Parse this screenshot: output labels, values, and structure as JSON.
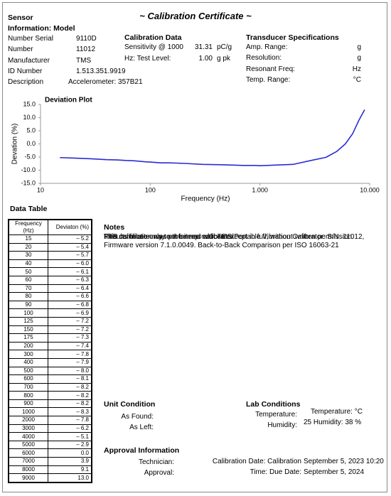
{
  "header": {
    "title": "~ Calibration Certificate ~",
    "section": "Sensor",
    "subtitle": "Information: Model"
  },
  "sensor": {
    "rows": [
      [
        "Number Serial",
        "9110D"
      ],
      [
        "Number",
        "11012"
      ],
      [
        "Manufacturer",
        "TMS"
      ],
      [
        "ID Number",
        "1.513.351.9919"
      ],
      [
        "Description",
        "Accelerometer: 357B21"
      ]
    ]
  },
  "calibration_data": {
    "title": "Calibration Data",
    "rows": [
      [
        "Sensitivity @ 1000",
        "31.31",
        "pC/g"
      ],
      [
        "Hz: Test Level:",
        "1.00",
        "g pk"
      ]
    ]
  },
  "transducer": {
    "title": "Transducer Specifications",
    "rows": [
      [
        "Amp. Range:",
        "g"
      ],
      [
        "Resolution:",
        "g"
      ],
      [
        "Resonant Freq:",
        "Hz"
      ],
      [
        "Temp. Range:",
        "°C"
      ]
    ]
  },
  "chart_data": {
    "type": "line",
    "title": "Deviation Plot",
    "x_label": "Frequency (Hz)",
    "y_label": "Devation (%)",
    "color": "#2b2bd6",
    "x_scale": "log",
    "x": [
      15,
      20,
      30,
      40,
      50,
      60,
      70,
      80,
      90,
      100,
      125,
      150,
      175,
      200,
      300,
      400,
      500,
      600,
      700,
      800,
      900,
      1000,
      2000,
      3000,
      4000,
      5000,
      6000,
      7000,
      8000,
      9000
    ],
    "values": [
      -5.2,
      -5.4,
      -5.7,
      -6.0,
      -6.1,
      -6.3,
      -6.4,
      -6.6,
      -6.8,
      -6.9,
      -7.2,
      -7.2,
      -7.3,
      -7.4,
      -7.8,
      -7.9,
      -8.0,
      -8.1,
      -8.2,
      -8.2,
      -8.2,
      -8.3,
      -7.8,
      -6.2,
      -5.1,
      -2.9,
      0.0,
      3.9,
      9.1,
      13.0
    ],
    "xlim": [
      10,
      10000
    ],
    "xticks": [
      10,
      100,
      {
        "value": 1000,
        "label": "1.000"
      },
      {
        "value": 10000,
        "label": "10.000"
      }
    ],
    "ylim": [
      -15,
      15
    ],
    "yticks": [
      {
        "value": 15,
        "label": "15.0"
      },
      {
        "value": 10,
        "label": "10.0"
      },
      {
        "value": 5,
        "label": "5.0"
      },
      {
        "value": 0,
        "label": "0.0"
      },
      {
        "value": -5,
        "label": "-5.0"
      },
      {
        "value": -10,
        "label": "-10.0"
      },
      {
        "value": -15,
        "label": "-15.0"
      }
    ]
  },
  "data_table": {
    "title": "Data Table",
    "columns": [
      "Frequency (Hz)",
      "Deviaton  (%)"
    ],
    "rows": [
      [
        "15",
        "– 5.2"
      ],
      [
        "20",
        "– 5.4"
      ],
      [
        "30",
        "– 5.7"
      ],
      [
        "40",
        "– 6.0"
      ],
      [
        "50",
        "– 6.1"
      ],
      [
        "60",
        "– 6.3"
      ],
      [
        "70",
        "– 6.4"
      ],
      [
        "80",
        "– 6.6"
      ],
      [
        "90",
        "– 6.8"
      ],
      [
        "100",
        "– 6.9"
      ],
      [
        "125",
        "– 7.2"
      ],
      [
        "150",
        "– 7.2"
      ],
      [
        "175",
        "– 7.3"
      ],
      [
        "200",
        "– 7.4"
      ],
      [
        "300",
        "– 7.8"
      ],
      [
        "400",
        "– 7.9"
      ],
      [
        "500",
        "– 8.0"
      ],
      [
        "600",
        "– 8.1"
      ],
      [
        "700",
        "– 8.2"
      ],
      [
        "800",
        "– 8.2"
      ],
      [
        "900",
        "– 8.2"
      ],
      [
        "1000",
        "– 8.3"
      ],
      [
        "2000",
        "– 7.8"
      ],
      [
        "3000",
        "– 6.2"
      ],
      [
        "4000",
        "– 5.1"
      ],
      [
        "5000",
        "– 2.9"
      ],
      [
        "6000",
        "0.0"
      ],
      [
        "7000",
        "3.9"
      ],
      [
        "8000",
        "9.1"
      ],
      [
        "9000",
        "13.0"
      ]
    ]
  },
  "notes": {
    "title": "Notes",
    "lines": [
      "Results relate only to the items calibrated.",
      "This certificate may not be reproduced except in full, without written permission.",
      "PTB",
      "This calibration was performed with TMS Portable Vibration Calibrator: S/N: 11012, Firmware version 7.1.0.0049. Back-to-Back Comparison per ISO 16063-21"
    ]
  },
  "unit_condition": {
    "title": "Unit Condition",
    "labels": [
      "As Found:",
      "As Left:"
    ]
  },
  "lab_conditions": {
    "title": "Lab Conditions",
    "labels": [
      "Temperature:",
      "Humidity:"
    ],
    "values": [
      "Temperature: °C",
      "25 Humidity: 38 %"
    ]
  },
  "approval": {
    "title": "Approval Information",
    "labels": [
      "Technician:",
      "Approval:"
    ],
    "date_labels": [
      "Calibration Date: Calibration",
      "Time: Due Date:"
    ],
    "dates": [
      "September 5, 2023 10:20",
      "September 5, 2024"
    ]
  }
}
